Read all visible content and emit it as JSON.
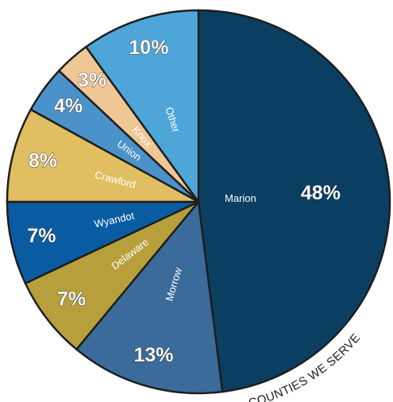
{
  "chart_data": {
    "type": "pie",
    "annotation": "COUNTIES WE SERVE",
    "categories": [
      "Marion",
      "Morrow",
      "Delaware",
      "Wyandot",
      "Crawford",
      "Union",
      "Knox",
      "Other"
    ],
    "values": [
      48,
      13,
      7,
      7,
      8,
      4,
      3,
      10
    ],
    "value_labels": [
      "48%",
      "13%",
      "7%",
      "7%",
      "8%",
      "4%",
      "3%",
      "10%"
    ],
    "colors": [
      "#0b3f62",
      "#3b6b9a",
      "#b7a03c",
      "#0a5ca2",
      "#e2be62",
      "#4b92cb",
      "#efc795",
      "#4ea5d8"
    ],
    "start_angle": 90,
    "direction": "clockwise"
  }
}
